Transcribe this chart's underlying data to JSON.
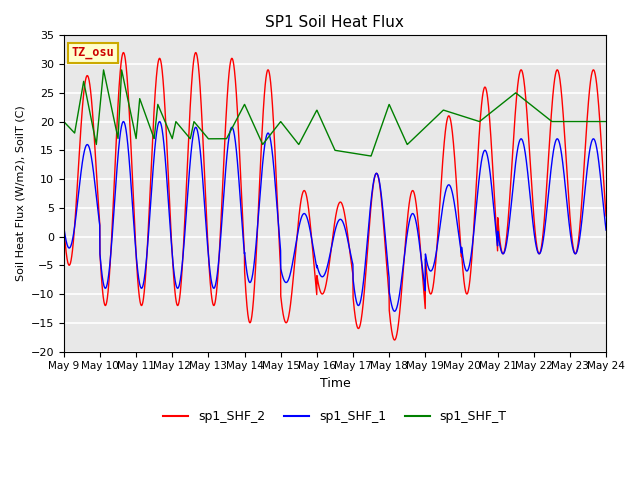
{
  "title": "SP1 Soil Heat Flux",
  "xlabel": "Time",
  "ylabel": "Soil Heat Flux (W/m2), SoilT (C)",
  "ylim": [
    -20,
    35
  ],
  "xlim_days": [
    0,
    15
  ],
  "yticks": [
    -20,
    -15,
    -10,
    -5,
    0,
    5,
    10,
    15,
    20,
    25,
    30,
    35
  ],
  "xtick_labels": [
    "May 9",
    "May 10",
    "May 11",
    "May 12",
    "May 13",
    "May 14",
    "May 15",
    "May 16",
    "May 17",
    "May 18",
    "May 19",
    "May 20",
    "May 21",
    "May 22",
    "May 23",
    "May 24"
  ],
  "line_colors": [
    "red",
    "blue",
    "green"
  ],
  "line_labels": [
    "sp1_SHF_2",
    "sp1_SHF_1",
    "sp1_SHF_T"
  ],
  "bg_color": "#e8e8e8",
  "annotation_text": "TZ_osu",
  "annotation_color": "#cc0000",
  "annotation_bg": "#ffffcc",
  "annotation_border": "#ccaa00",
  "red_peaks": [
    28,
    32,
    31,
    32,
    31,
    29,
    8,
    6,
    11,
    8,
    21,
    26,
    29
  ],
  "red_troughs": [
    -5,
    -12,
    -12,
    -12,
    -12,
    -15,
    -15,
    -10,
    -16,
    -18,
    -10,
    -10,
    -3
  ],
  "blue_peaks": [
    16,
    20,
    20,
    19,
    19,
    18,
    4,
    3,
    11,
    4,
    9,
    15,
    17
  ],
  "blue_troughs": [
    -2,
    -9,
    -9,
    -9,
    -9,
    -8,
    -8,
    -7,
    -12,
    -13,
    -6,
    -6,
    -3
  ],
  "green_vals": [
    20,
    18,
    27,
    16,
    29,
    17,
    29,
    17,
    24,
    17,
    23,
    17,
    20,
    17,
    20,
    17,
    17,
    17,
    23,
    16,
    20,
    16,
    22,
    15,
    14,
    23,
    16,
    22,
    20,
    25,
    20
  ],
  "green_times": [
    0.0,
    0.3,
    0.55,
    0.9,
    1.1,
    1.5,
    1.6,
    2.0,
    2.1,
    2.5,
    2.6,
    3.0,
    3.1,
    3.5,
    3.6,
    4.0,
    4.1,
    4.5,
    5.0,
    5.5,
    6.0,
    6.5,
    7.0,
    7.5,
    8.5,
    9.0,
    9.5,
    10.5,
    11.5,
    12.5,
    13.5
  ],
  "peak_phase": 0.65,
  "trough_phase": 0.15
}
